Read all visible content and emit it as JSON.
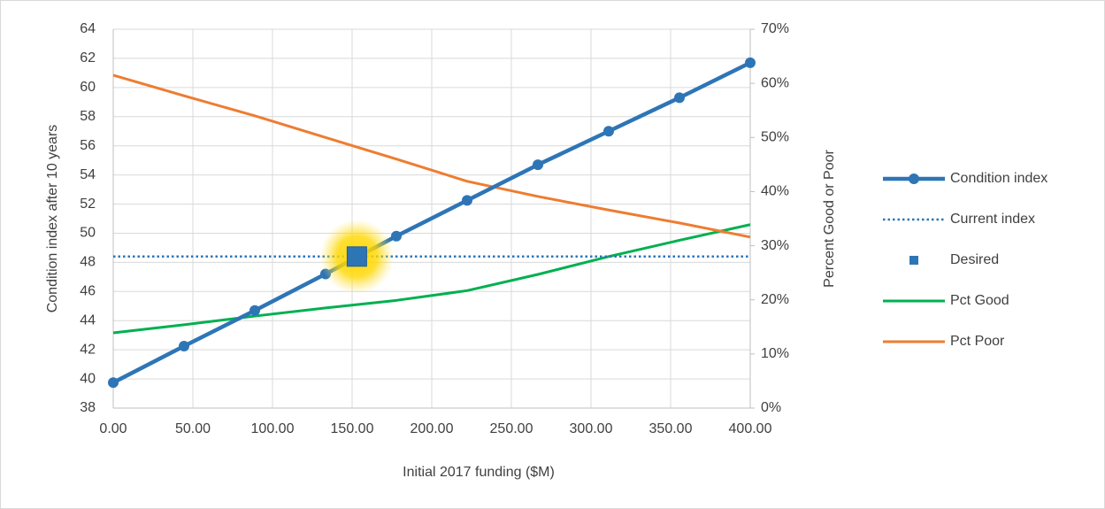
{
  "chart_data": {
    "type": "line",
    "xlabel": "Initial 2017 funding ($M)",
    "ylabel": "Condition index after 10 years",
    "y2label": "Percent Good or Poor",
    "x": [
      0,
      44.44,
      88.89,
      133.33,
      177.78,
      222.22,
      266.67,
      311.11,
      355.56,
      400
    ],
    "xlim": [
      0,
      400
    ],
    "xticks": [
      {
        "value": 0,
        "label": "0.00"
      },
      {
        "value": 50,
        "label": "50.00"
      },
      {
        "value": 100,
        "label": "100.00"
      },
      {
        "value": 150,
        "label": "150.00"
      },
      {
        "value": 200,
        "label": "200.00"
      },
      {
        "value": 250,
        "label": "250.00"
      },
      {
        "value": 300,
        "label": "300.00"
      },
      {
        "value": 350,
        "label": "350.00"
      },
      {
        "value": 400,
        "label": "400.00"
      }
    ],
    "ylim": [
      38,
      64
    ],
    "yticks": [
      38,
      40,
      42,
      44,
      46,
      48,
      50,
      52,
      54,
      56,
      58,
      60,
      62,
      64
    ],
    "y2lim": [
      0,
      70
    ],
    "y2ticks": [
      {
        "value": 0,
        "label": "0%"
      },
      {
        "value": 10,
        "label": "10%"
      },
      {
        "value": 20,
        "label": "20%"
      },
      {
        "value": 30,
        "label": "30%"
      },
      {
        "value": 40,
        "label": "40%"
      },
      {
        "value": 50,
        "label": "50%"
      },
      {
        "value": 60,
        "label": "60%"
      },
      {
        "value": 70,
        "label": "70%"
      }
    ],
    "grid": true,
    "legend": "right",
    "series": [
      {
        "name": "Condition index",
        "color": "#2e75b6",
        "style": "line-marker",
        "values": [
          39.75,
          42.25,
          44.7,
          47.2,
          49.8,
          52.25,
          54.7,
          57.0,
          59.3,
          61.7
        ]
      },
      {
        "name": "Current index",
        "color": "#2e75b6",
        "style": "dotted",
        "x": [
          0,
          400
        ],
        "values": [
          48.4,
          48.4
        ]
      },
      {
        "name": "Desired",
        "color": "#2e75b6",
        "style": "marker",
        "x": [
          153
        ],
        "values": [
          48.4
        ]
      },
      {
        "name": "Pct Good",
        "color": "#00b050",
        "style": "line",
        "axis": "y2",
        "values": [
          13.9,
          15.4,
          17.0,
          18.5,
          19.9,
          21.7,
          24.7,
          28.0,
          31.0,
          33.9
        ]
      },
      {
        "name": "Pct Poor",
        "color": "#ed7d31",
        "style": "line",
        "axis": "y2",
        "values": [
          61.5,
          57.7,
          54.0,
          50.0,
          46.0,
          41.9,
          39.1,
          36.6,
          34.2,
          31.6
        ]
      }
    ]
  }
}
